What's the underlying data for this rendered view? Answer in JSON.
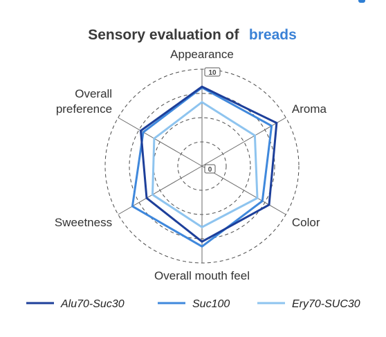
{
  "colors": {
    "accent": "#3b82d6",
    "corner_mark": "#2f7fd4"
  },
  "chart_data": {
    "type": "radar",
    "title": "Sensory evaluation of",
    "title_accent": "breads",
    "axes": [
      [
        "Appearance"
      ],
      [
        "Aroma"
      ],
      [
        "Color"
      ],
      [
        "Overall mouth feel"
      ],
      [
        "Sweetness"
      ],
      [
        "Overall",
        "preference"
      ]
    ],
    "rlim": [
      0,
      10
    ],
    "ticks": [
      {
        "value": 0,
        "label": "0"
      },
      {
        "value": 10,
        "label": "10"
      }
    ],
    "grid_levels": [
      0,
      2.5,
      5,
      7.5,
      10
    ],
    "grid": true,
    "legend_position": "bottom",
    "series": [
      {
        "name": "Alu70-Suc30",
        "color": "#1d3f9a",
        "values": [
          8.2,
          8.9,
          8.0,
          7.8,
          6.6,
          7.3
        ]
      },
      {
        "name": "Suc100",
        "color": "#3f88dc",
        "values": [
          8.1,
          8.3,
          7.2,
          8.3,
          8.3,
          7.0
        ]
      },
      {
        "name": "Ery70-SUC30",
        "color": "#8ec4ef",
        "values": [
          6.6,
          6.3,
          6.6,
          6.3,
          5.9,
          5.7
        ]
      }
    ]
  }
}
